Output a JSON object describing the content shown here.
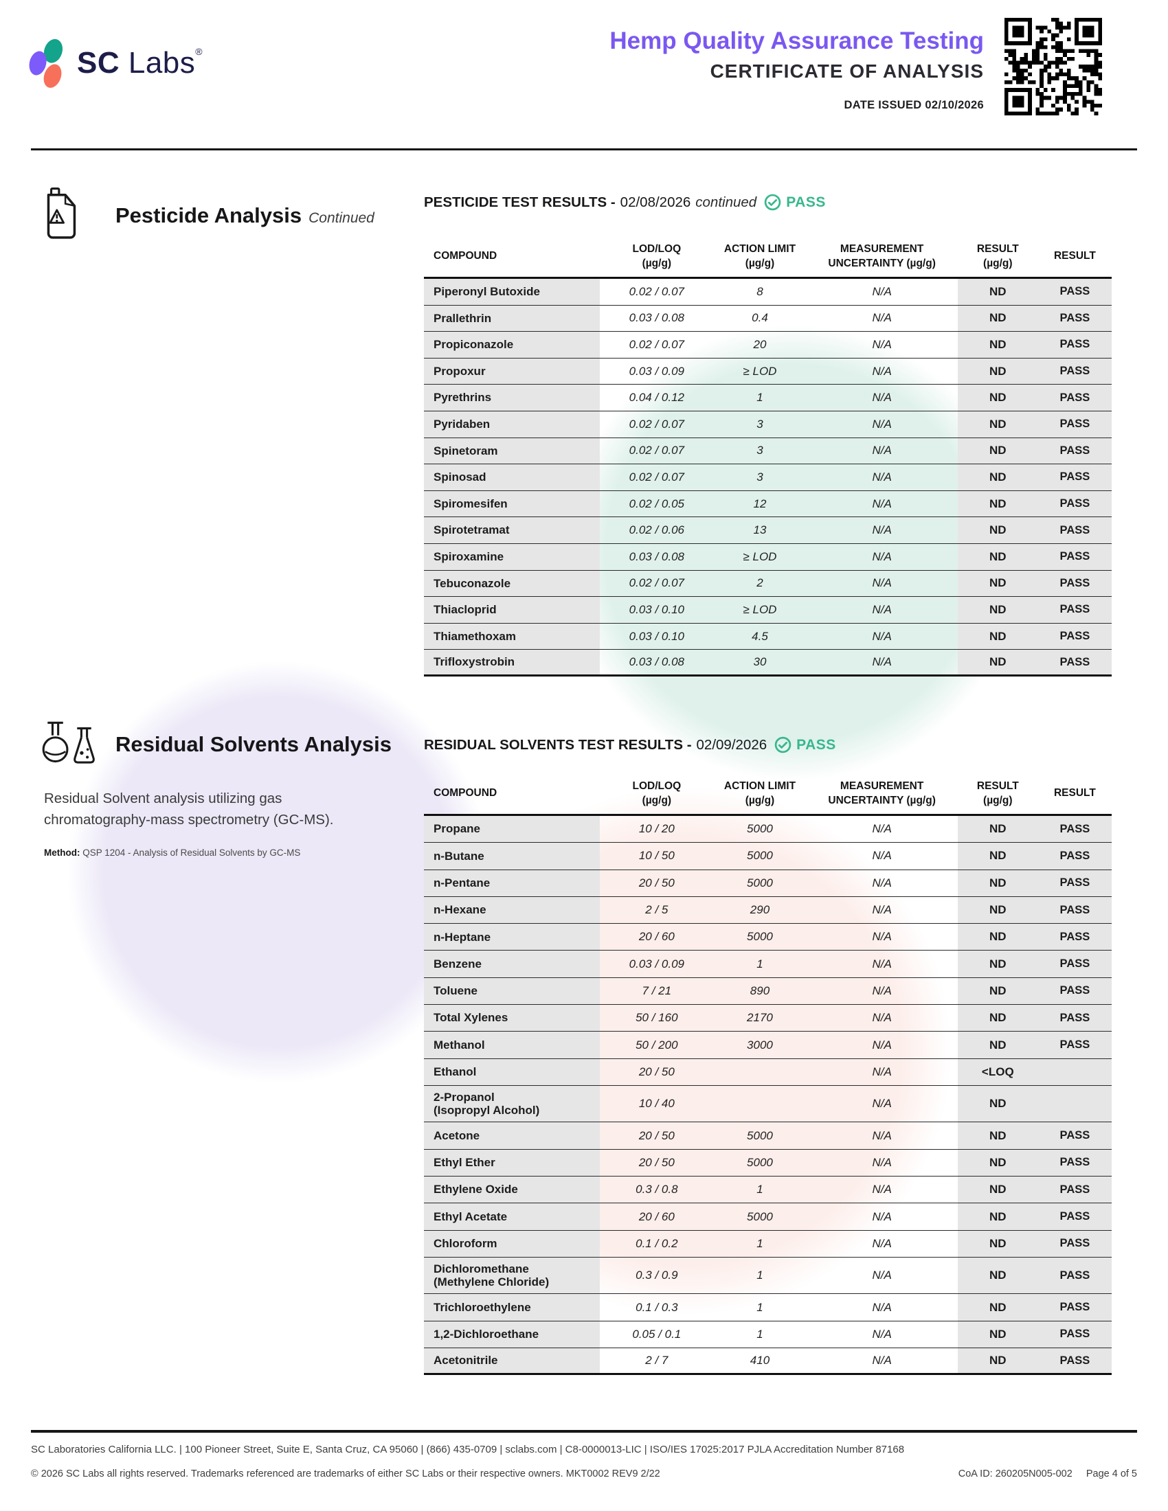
{
  "header": {
    "logo": {
      "bold": "SC",
      "regular": "Labs",
      "registered": "®"
    },
    "title": "Hemp Quality Assurance Testing",
    "subtitle": "CERTIFICATE OF ANALYSIS",
    "date_issued_label": "DATE ISSUED",
    "date_issued_value": "02/10/2026"
  },
  "pesticide": {
    "section_title": "Pesticide Analysis",
    "section_title_suffix": "Continued",
    "results_label": "PESTICIDE TEST RESULTS -",
    "results_date": "02/08/2026",
    "results_suffix": "continued",
    "status": "PASS",
    "table": {
      "columns": [
        "COMPOUND",
        "LOD/LOQ\n(µg/g)",
        "ACTION LIMIT\n(µg/g)",
        "MEASUREMENT\nUNCERTAINTY (µg/g)",
        "RESULT\n(µg/g)",
        "RESULT"
      ],
      "rows": [
        [
          "Piperonyl Butoxide",
          "0.02 / 0.07",
          "8",
          "N/A",
          "ND",
          "PASS"
        ],
        [
          "Prallethrin",
          "0.03 / 0.08",
          "0.4",
          "N/A",
          "ND",
          "PASS"
        ],
        [
          "Propiconazole",
          "0.02 / 0.07",
          "20",
          "N/A",
          "ND",
          "PASS"
        ],
        [
          "Propoxur",
          "0.03 / 0.09",
          "≥ LOD",
          "N/A",
          "ND",
          "PASS"
        ],
        [
          "Pyrethrins",
          "0.04 / 0.12",
          "1",
          "N/A",
          "ND",
          "PASS"
        ],
        [
          "Pyridaben",
          "0.02 / 0.07",
          "3",
          "N/A",
          "ND",
          "PASS"
        ],
        [
          "Spinetoram",
          "0.02 / 0.07",
          "3",
          "N/A",
          "ND",
          "PASS"
        ],
        [
          "Spinosad",
          "0.02 / 0.07",
          "3",
          "N/A",
          "ND",
          "PASS"
        ],
        [
          "Spiromesifen",
          "0.02 / 0.05",
          "12",
          "N/A",
          "ND",
          "PASS"
        ],
        [
          "Spirotetramat",
          "0.02 / 0.06",
          "13",
          "N/A",
          "ND",
          "PASS"
        ],
        [
          "Spiroxamine",
          "0.03 / 0.08",
          "≥ LOD",
          "N/A",
          "ND",
          "PASS"
        ],
        [
          "Tebuconazole",
          "0.02 / 0.07",
          "2",
          "N/A",
          "ND",
          "PASS"
        ],
        [
          "Thiacloprid",
          "0.03 / 0.10",
          "≥ LOD",
          "N/A",
          "ND",
          "PASS"
        ],
        [
          "Thiamethoxam",
          "0.03 / 0.10",
          "4.5",
          "N/A",
          "ND",
          "PASS"
        ],
        [
          "Trifloxystrobin",
          "0.03 / 0.08",
          "30",
          "N/A",
          "ND",
          "PASS"
        ]
      ]
    }
  },
  "solvents": {
    "section_title": "Residual Solvents Analysis",
    "description": "Residual Solvent analysis utilizing gas chromatography-mass spectrometry (GC-MS).",
    "method_label": "Method:",
    "method_value": "QSP 1204 - Analysis of Residual Solvents by GC-MS",
    "results_label": "RESIDUAL SOLVENTS TEST RESULTS -",
    "results_date": "02/09/2026",
    "status": "PASS",
    "table": {
      "columns": [
        "COMPOUND",
        "LOD/LOQ\n(µg/g)",
        "ACTION LIMIT\n(µg/g)",
        "MEASUREMENT\nUNCERTAINTY (µg/g)",
        "RESULT\n(µg/g)",
        "RESULT"
      ],
      "rows": [
        [
          "Propane",
          "10 / 20",
          "5000",
          "N/A",
          "ND",
          "PASS"
        ],
        [
          "n-Butane",
          "10 / 50",
          "5000",
          "N/A",
          "ND",
          "PASS"
        ],
        [
          "n-Pentane",
          "20 / 50",
          "5000",
          "N/A",
          "ND",
          "PASS"
        ],
        [
          "n-Hexane",
          "2 / 5",
          "290",
          "N/A",
          "ND",
          "PASS"
        ],
        [
          "n-Heptane",
          "20 / 60",
          "5000",
          "N/A",
          "ND",
          "PASS"
        ],
        [
          "Benzene",
          "0.03 / 0.09",
          "1",
          "N/A",
          "ND",
          "PASS"
        ],
        [
          "Toluene",
          "7 / 21",
          "890",
          "N/A",
          "ND",
          "PASS"
        ],
        [
          "Total Xylenes",
          "50 / 160",
          "2170",
          "N/A",
          "ND",
          "PASS"
        ],
        [
          "Methanol",
          "50 / 200",
          "3000",
          "N/A",
          "ND",
          "PASS"
        ],
        [
          "Ethanol",
          "20 / 50",
          "",
          "N/A",
          "<LOQ",
          ""
        ],
        [
          "2-Propanol\n(Isopropyl Alcohol)",
          "10 / 40",
          "",
          "N/A",
          "ND",
          ""
        ],
        [
          "Acetone",
          "20 / 50",
          "5000",
          "N/A",
          "ND",
          "PASS"
        ],
        [
          "Ethyl Ether",
          "20 / 50",
          "5000",
          "N/A",
          "ND",
          "PASS"
        ],
        [
          "Ethylene Oxide",
          "0.3 / 0.8",
          "1",
          "N/A",
          "ND",
          "PASS"
        ],
        [
          "Ethyl Acetate",
          "20 / 60",
          "5000",
          "N/A",
          "ND",
          "PASS"
        ],
        [
          "Chloroform",
          "0.1 / 0.2",
          "1",
          "N/A",
          "ND",
          "PASS"
        ],
        [
          "Dichloromethane\n(Methylene Chloride)",
          "0.3 / 0.9",
          "1",
          "N/A",
          "ND",
          "PASS"
        ],
        [
          "Trichloroethylene",
          "0.1 / 0.3",
          "1",
          "N/A",
          "ND",
          "PASS"
        ],
        [
          "1,2-Dichloroethane",
          "0.05 / 0.1",
          "1",
          "N/A",
          "ND",
          "PASS"
        ],
        [
          "Acetonitrile",
          "2 / 7",
          "410",
          "N/A",
          "ND",
          "PASS"
        ]
      ]
    }
  },
  "footer": {
    "line1": "SC Laboratories California LLC. | 100 Pioneer Street, Suite E, Santa Cruz, CA 95060 | (866) 435-0709 | sclabs.com | C8-0000013-LIC | ISO/IES 17025:2017 PJLA Accreditation Number 87168",
    "line2": "© 2026 SC Labs all rights reserved. Trademarks referenced are trademarks of either SC Labs or their respective owners. MKT0002 REV9 2/22",
    "coa_id": "CoA ID: 260205N005-002",
    "page_label": "Page 4 of 5"
  },
  "colors": {
    "accent_purple": "#7a58f0",
    "pass_green": "#38b78e",
    "logo_navy": "#1d1d4a",
    "logo_teal": "#14a38b",
    "logo_purple": "#7c5bfa",
    "logo_coral": "#f7705a",
    "table_gray": "#e6e6e6"
  }
}
